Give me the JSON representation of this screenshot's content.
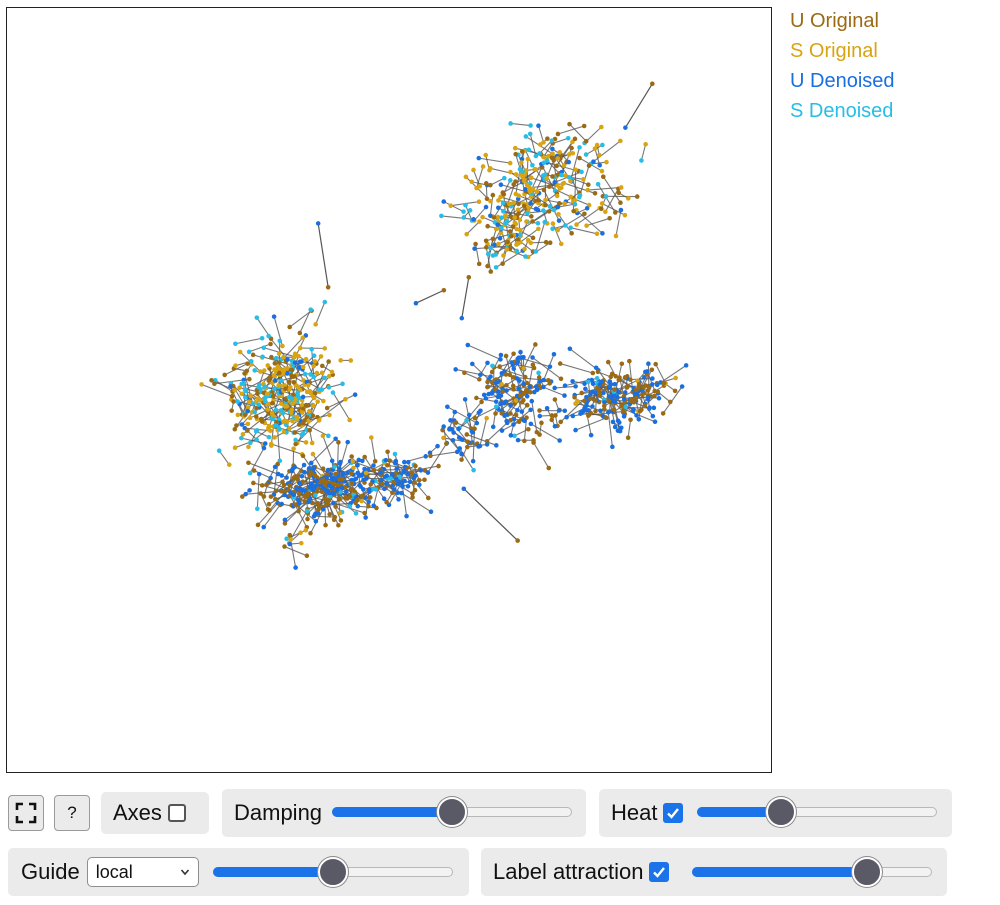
{
  "legend": [
    {
      "label": "U Original",
      "color": "#9b6a14"
    },
    {
      "label": "S Original",
      "color": "#d9a412"
    },
    {
      "label": "U Denoised",
      "color": "#1a6fe0"
    },
    {
      "label": "S Denoised",
      "color": "#27bde6"
    }
  ],
  "colors": {
    "accent": "#1a73e8",
    "link": "#555555"
  },
  "plot": {
    "axes_visible": false,
    "point_colors": [
      "#9b6a14",
      "#d9a412",
      "#1a6fe0",
      "#27bde6"
    ]
  },
  "controls": {
    "fullscreen_icon": "fullscreen-icon",
    "help_label": "?",
    "axes": {
      "label": "Axes",
      "checked": false
    },
    "damping": {
      "label": "Damping",
      "value": 0.5
    },
    "heat": {
      "label": "Heat",
      "checked": true,
      "value": 0.35
    },
    "guide": {
      "label": "Guide",
      "selected": "local",
      "value": 0.5
    },
    "label_attraction": {
      "label": "Label attraction",
      "checked": true,
      "value": 0.73
    }
  }
}
